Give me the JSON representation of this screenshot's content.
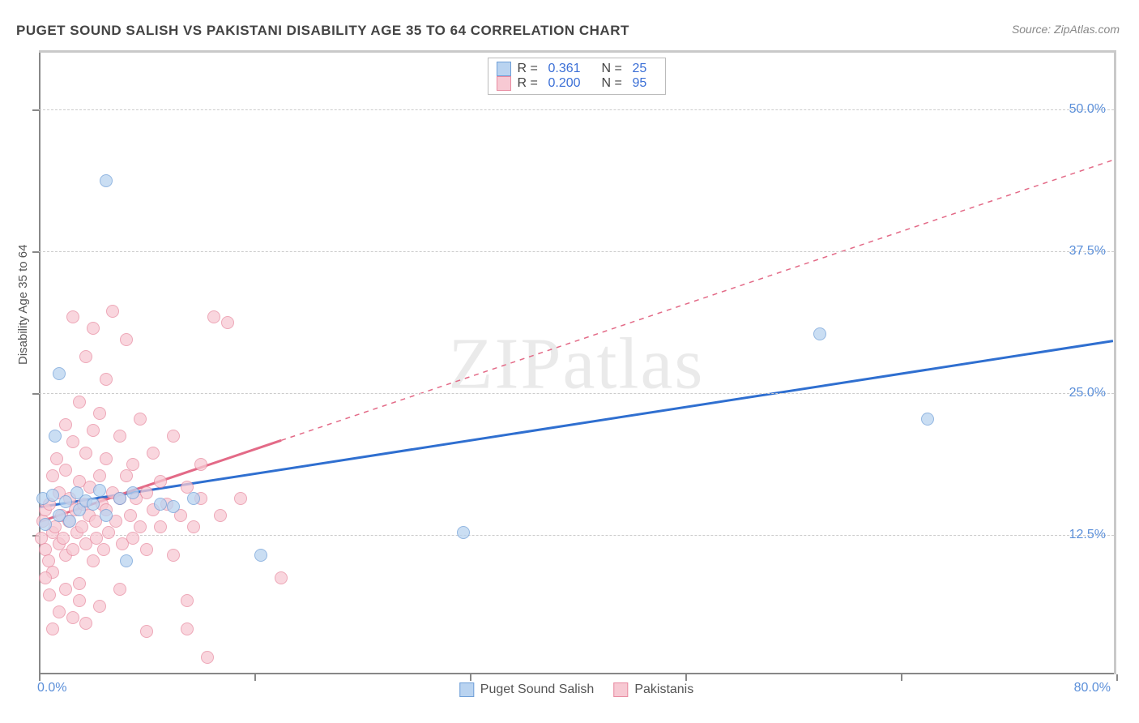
{
  "title": "PUGET SOUND SALISH VS PAKISTANI DISABILITY AGE 35 TO 64 CORRELATION CHART",
  "source": "Source: ZipAtlas.com",
  "ylabel": "Disability Age 35 to 64",
  "watermark": "ZIPatlas",
  "chart": {
    "type": "scatter",
    "xlim": [
      0,
      80
    ],
    "ylim": [
      0,
      55
    ],
    "xticks": [
      0,
      16,
      32,
      48,
      64,
      80
    ],
    "yticks": [
      12.5,
      25.0,
      37.5,
      50.0
    ],
    "ytick_labels": [
      "12.5%",
      "25.0%",
      "37.5%",
      "50.0%"
    ],
    "x_min_label": "0.0%",
    "x_max_label": "80.0%",
    "background_color": "#ffffff",
    "grid_color": "#cccccc",
    "axis_color": "#888888",
    "marker_radius": 8,
    "marker_stroke_width": 1.5,
    "series": [
      {
        "name": "Puget Sound Salish",
        "fill": "#b9d3f0",
        "stroke": "#6f9fd8",
        "line_color": "#2f6fd0",
        "line_width": 3,
        "line_dash_after_x": 80,
        "R": "0.361",
        "N": "25",
        "reg_start": [
          0,
          14.8
        ],
        "reg_end": [
          80,
          29.5
        ],
        "points": [
          [
            0.3,
            15.5
          ],
          [
            0.5,
            13.2
          ],
          [
            1.0,
            15.8
          ],
          [
            1.2,
            21.0
          ],
          [
            1.5,
            14.0
          ],
          [
            1.5,
            26.5
          ],
          [
            2.0,
            15.2
          ],
          [
            2.3,
            13.5
          ],
          [
            2.8,
            16.0
          ],
          [
            3.0,
            14.5
          ],
          [
            3.5,
            15.3
          ],
          [
            4.0,
            15.0
          ],
          [
            4.5,
            16.2
          ],
          [
            5.0,
            43.5
          ],
          [
            5.0,
            14.0
          ],
          [
            6.0,
            15.5
          ],
          [
            6.5,
            10.0
          ],
          [
            7.0,
            16.0
          ],
          [
            9.0,
            15.0
          ],
          [
            10.0,
            14.8
          ],
          [
            11.5,
            15.5
          ],
          [
            16.5,
            10.5
          ],
          [
            31.5,
            12.5
          ],
          [
            58.0,
            30.0
          ],
          [
            66.0,
            22.5
          ]
        ]
      },
      {
        "name": "Pakistanis",
        "fill": "#f7c9d3",
        "stroke": "#e88ba1",
        "line_color": "#e36a87",
        "line_width": 3,
        "line_dash_after_x": 18,
        "R": "0.200",
        "N": "95",
        "reg_start": [
          0,
          13.5
        ],
        "reg_end": [
          80,
          45.5
        ],
        "points": [
          [
            0.2,
            12.0
          ],
          [
            0.3,
            13.5
          ],
          [
            0.5,
            11.0
          ],
          [
            0.5,
            14.5
          ],
          [
            0.7,
            10.0
          ],
          [
            0.8,
            15.0
          ],
          [
            1.0,
            12.5
          ],
          [
            1.0,
            17.5
          ],
          [
            1.0,
            9.0
          ],
          [
            1.2,
            13.0
          ],
          [
            1.3,
            19.0
          ],
          [
            1.5,
            11.5
          ],
          [
            1.5,
            16.0
          ],
          [
            1.7,
            14.0
          ],
          [
            1.8,
            12.0
          ],
          [
            2.0,
            10.5
          ],
          [
            2.0,
            18.0
          ],
          [
            2.0,
            22.0
          ],
          [
            2.2,
            13.5
          ],
          [
            2.3,
            15.5
          ],
          [
            2.5,
            11.0
          ],
          [
            2.5,
            20.5
          ],
          [
            2.5,
            31.5
          ],
          [
            2.7,
            14.5
          ],
          [
            2.8,
            12.5
          ],
          [
            3.0,
            8.0
          ],
          [
            3.0,
            17.0
          ],
          [
            3.0,
            24.0
          ],
          [
            3.2,
            13.0
          ],
          [
            3.3,
            15.0
          ],
          [
            3.5,
            11.5
          ],
          [
            3.5,
            19.5
          ],
          [
            3.5,
            28.0
          ],
          [
            3.7,
            14.0
          ],
          [
            3.8,
            16.5
          ],
          [
            4.0,
            10.0
          ],
          [
            4.0,
            21.5
          ],
          [
            4.0,
            30.5
          ],
          [
            4.2,
            13.5
          ],
          [
            4.3,
            12.0
          ],
          [
            4.5,
            17.5
          ],
          [
            4.5,
            23.0
          ],
          [
            4.7,
            15.0
          ],
          [
            4.8,
            11.0
          ],
          [
            5.0,
            14.5
          ],
          [
            5.0,
            19.0
          ],
          [
            5.0,
            26.0
          ],
          [
            5.2,
            12.5
          ],
          [
            5.5,
            16.0
          ],
          [
            5.5,
            32.0
          ],
          [
            5.7,
            13.5
          ],
          [
            6.0,
            15.5
          ],
          [
            6.0,
            21.0
          ],
          [
            6.2,
            11.5
          ],
          [
            6.5,
            17.5
          ],
          [
            6.5,
            29.5
          ],
          [
            6.8,
            14.0
          ],
          [
            7.0,
            12.0
          ],
          [
            7.0,
            18.5
          ],
          [
            7.2,
            15.5
          ],
          [
            7.5,
            13.0
          ],
          [
            7.5,
            22.5
          ],
          [
            8.0,
            16.0
          ],
          [
            8.0,
            11.0
          ],
          [
            8.5,
            14.5
          ],
          [
            8.5,
            19.5
          ],
          [
            9.0,
            13.0
          ],
          [
            9.0,
            17.0
          ],
          [
            9.5,
            15.0
          ],
          [
            10.0,
            10.5
          ],
          [
            10.0,
            21.0
          ],
          [
            10.5,
            14.0
          ],
          [
            11.0,
            16.5
          ],
          [
            11.0,
            4.0
          ],
          [
            11.5,
            13.0
          ],
          [
            12.0,
            15.5
          ],
          [
            12.0,
            18.5
          ],
          [
            12.5,
            1.5
          ],
          [
            13.0,
            31.5
          ],
          [
            13.5,
            14.0
          ],
          [
            14.0,
            31.0
          ],
          [
            11.0,
            6.5
          ],
          [
            4.5,
            6.0
          ],
          [
            3.0,
            6.5
          ],
          [
            2.0,
            7.5
          ],
          [
            15.0,
            15.5
          ],
          [
            18.0,
            8.5
          ],
          [
            8.0,
            3.8
          ],
          [
            1.5,
            5.5
          ],
          [
            0.8,
            7.0
          ],
          [
            2.5,
            5.0
          ],
          [
            3.5,
            4.5
          ],
          [
            1.0,
            4.0
          ],
          [
            0.5,
            8.5
          ],
          [
            6.0,
            7.5
          ]
        ]
      }
    ]
  },
  "legend_bottom": [
    {
      "label": "Puget Sound Salish",
      "fill": "#b9d3f0",
      "stroke": "#6f9fd8"
    },
    {
      "label": "Pakistanis",
      "fill": "#f7c9d3",
      "stroke": "#e88ba1"
    }
  ]
}
